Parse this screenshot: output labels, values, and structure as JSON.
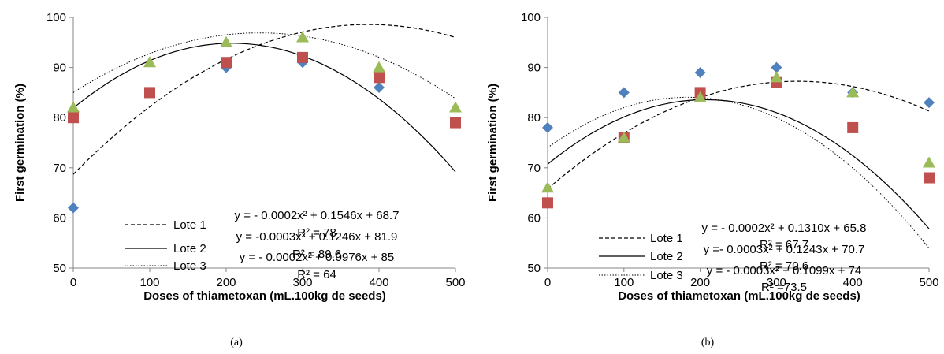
{
  "chart_data": [
    {
      "type": "scatter",
      "panel_label": "(a)",
      "xlabel": "Doses of thiametoxan (mL.100kg de seeds)",
      "ylabel": "First germination (%)",
      "xlim": [
        0,
        500
      ],
      "ylim": [
        50,
        100
      ],
      "x_ticks": [
        "0",
        "100",
        "200",
        "300",
        "400",
        "500"
      ],
      "y_ticks": [
        "50",
        "60",
        "70",
        "80",
        "90",
        "100"
      ],
      "x": [
        0,
        100,
        200,
        300,
        400,
        500
      ],
      "grid": false,
      "series": [
        {
          "marker": "diamond",
          "color": "#4F81BD",
          "values": [
            62,
            85,
            90,
            91,
            86,
            79
          ]
        },
        {
          "marker": "square",
          "color": "#C0504D",
          "values": [
            80,
            85,
            91,
            92,
            88,
            79
          ]
        },
        {
          "marker": "triangle",
          "color": "#9BBB59",
          "values": [
            82,
            91,
            95,
            96,
            90,
            82
          ]
        }
      ],
      "trendlines": [
        {
          "name": "Lote 1",
          "style": "dashed",
          "coef": [
            68.7,
            0.1546,
            -0.0002
          ],
          "equation": "y =  - 0.0002x² + 0.1546x + 68.7",
          "r2": "R² = 78"
        },
        {
          "name": "Lote 2",
          "style": "solid",
          "coef": [
            81.9,
            0.1246,
            -0.0003
          ],
          "equation": "y =  -0.0003x² + 0.1246x + 81.9",
          "r2": "R² = 89.6"
        },
        {
          "name": "Lote 3",
          "style": "dotted",
          "coef": [
            85,
            0.0976,
            -0.0002
          ],
          "equation": "y =  - 0.0002x² + 0.0976x + 85",
          "r2": "R² = 64"
        }
      ]
    },
    {
      "type": "scatter",
      "panel_label": "(b)",
      "xlabel": "Doses of thiametoxan (mL.100kg de seeds)",
      "ylabel": "First germination (%)",
      "xlim": [
        0,
        500
      ],
      "ylim": [
        50,
        100
      ],
      "x_ticks": [
        "0",
        "100",
        "200",
        "300",
        "400",
        "500"
      ],
      "y_ticks": [
        "50",
        "60",
        "70",
        "80",
        "90",
        "100"
      ],
      "x": [
        0,
        100,
        200,
        300,
        400,
        500
      ],
      "grid": false,
      "series": [
        {
          "marker": "diamond",
          "color": "#4F81BD",
          "values": [
            78,
            85,
            89,
            90,
            85,
            83
          ]
        },
        {
          "marker": "square",
          "color": "#C0504D",
          "values": [
            63,
            76,
            85,
            87,
            78,
            68
          ]
        },
        {
          "marker": "triangle",
          "color": "#9BBB59",
          "values": [
            66,
            76,
            84,
            88,
            85,
            71
          ]
        }
      ],
      "trendlines": [
        {
          "name": "Lote 1",
          "style": "dashed",
          "coef": [
            65.8,
            0.131,
            -0.0002
          ],
          "equation": "y =  - 0.0002x² + 0.1310x + 65.8",
          "r2": "R² = 67.7"
        },
        {
          "name": "Lote 2",
          "style": "solid",
          "coef": [
            70.7,
            0.1243,
            -0.0003
          ],
          "equation": "y =- 0.0003x² + 0.1243x + 70.7",
          "r2": "R² = 70.6"
        },
        {
          "name": "Lote 3",
          "style": "dotted",
          "coef": [
            74,
            0.1099,
            -0.0003
          ],
          "equation": "y =  - 0.0003x² + 0.1099x + 74",
          "r2": "R² =73.5"
        }
      ]
    }
  ]
}
